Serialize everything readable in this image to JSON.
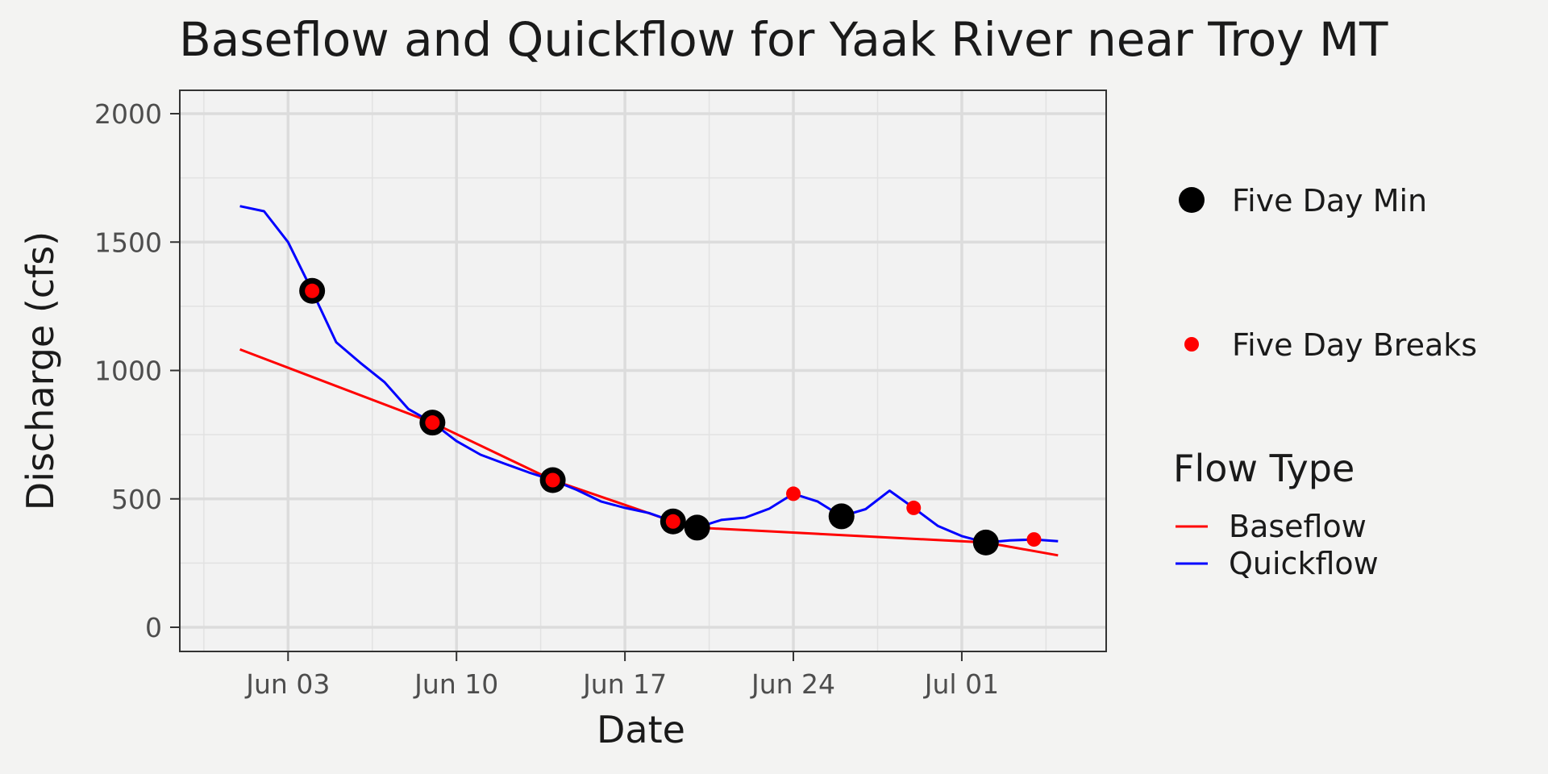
{
  "chart_data": {
    "type": "line",
    "title": "Baseflow and Quickflow for Yaak River near Troy MT",
    "xlabel": "Date",
    "ylabel": "Discharge (cfs)",
    "ylim": [
      0,
      2000
    ],
    "y_ticks": [
      0,
      500,
      1000,
      1500,
      2000
    ],
    "x_ticks": [
      {
        "date": "2023-06-03",
        "label": "Jun 03"
      },
      {
        "date": "2023-06-10",
        "label": "Jun 10"
      },
      {
        "date": "2023-06-17",
        "label": "Jun 17"
      },
      {
        "date": "2023-06-24",
        "label": "Jun 24"
      },
      {
        "date": "2023-07-01",
        "label": "Jul 01"
      }
    ],
    "xlim": [
      "2023-05-29T12:00",
      "2023-07-07"
    ],
    "grid": true,
    "legend_position": "right",
    "legend_title": "Flow Type",
    "series": [
      {
        "name": "Baseflow",
        "color": "#ff0000",
        "points": [
          [
            "2023-06-01",
            1082
          ],
          [
            "2023-06-09",
            797
          ],
          [
            "2023-06-14",
            573
          ],
          [
            "2023-06-19",
            412
          ],
          [
            "2023-06-20",
            388
          ],
          [
            "2023-07-02",
            330
          ],
          [
            "2023-07-05",
            280
          ]
        ]
      },
      {
        "name": "Quickflow",
        "color": "#0000ff",
        "points": [
          [
            "2023-06-01",
            1640
          ],
          [
            "2023-06-02",
            1620
          ],
          [
            "2023-06-03",
            1500
          ],
          [
            "2023-06-04",
            1310
          ],
          [
            "2023-06-05",
            1110
          ],
          [
            "2023-06-06",
            1030
          ],
          [
            "2023-06-07",
            955
          ],
          [
            "2023-06-08",
            850
          ],
          [
            "2023-06-09",
            797
          ],
          [
            "2023-06-10",
            725
          ],
          [
            "2023-06-11",
            672
          ],
          [
            "2023-06-12",
            637
          ],
          [
            "2023-06-13",
            603
          ],
          [
            "2023-06-14",
            573
          ],
          [
            "2023-06-15",
            535
          ],
          [
            "2023-06-16",
            490
          ],
          [
            "2023-06-17",
            465
          ],
          [
            "2023-06-18",
            445
          ],
          [
            "2023-06-19",
            412
          ],
          [
            "2023-06-20",
            388
          ],
          [
            "2023-06-21",
            418
          ],
          [
            "2023-06-22",
            427
          ],
          [
            "2023-06-23",
            462
          ],
          [
            "2023-06-24",
            520
          ],
          [
            "2023-06-25",
            490
          ],
          [
            "2023-06-26",
            432
          ],
          [
            "2023-06-27",
            460
          ],
          [
            "2023-06-28",
            532
          ],
          [
            "2023-06-29",
            465
          ],
          [
            "2023-06-30",
            395
          ],
          [
            "2023-07-01",
            355
          ],
          [
            "2023-07-02",
            330
          ],
          [
            "2023-07-03",
            338
          ],
          [
            "2023-07-04",
            342
          ],
          [
            "2023-07-05",
            335
          ]
        ]
      }
    ],
    "five_day_min": {
      "name": "Five Day Min",
      "color": "#000000",
      "points": [
        [
          "2023-06-04",
          1310
        ],
        [
          "2023-06-09",
          797
        ],
        [
          "2023-06-14",
          573
        ],
        [
          "2023-06-19",
          412
        ],
        [
          "2023-06-20",
          388
        ],
        [
          "2023-06-26",
          432
        ],
        [
          "2023-07-02",
          330
        ]
      ]
    },
    "five_day_breaks": {
      "name": "Five Day Breaks",
      "color": "#ff0000",
      "points": [
        [
          "2023-06-04",
          1310
        ],
        [
          "2023-06-09",
          797
        ],
        [
          "2023-06-14",
          573
        ],
        [
          "2023-06-19",
          412
        ],
        [
          "2023-06-24",
          520
        ],
        [
          "2023-06-29",
          465
        ],
        [
          "2023-07-04",
          342
        ]
      ]
    }
  }
}
